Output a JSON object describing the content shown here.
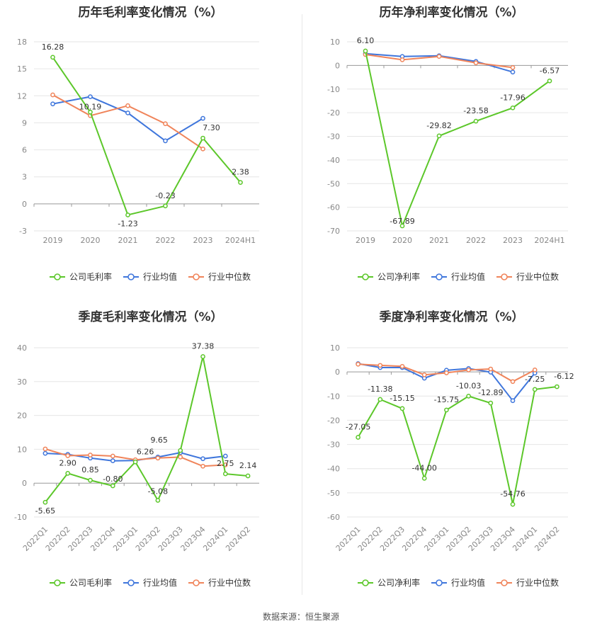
{
  "source": "数据来源：恒生聚源",
  "colors": {
    "company": "#5cc72a",
    "avg": "#3f76dc",
    "median": "#f0845a"
  },
  "chart_data": [
    {
      "type": "line",
      "title": "历年毛利率变化情况（%）",
      "categories": [
        "2019",
        "2020",
        "2021",
        "2022",
        "2023",
        "2024H1"
      ],
      "ylim": [
        -3,
        18
      ],
      "yticks": [
        18,
        15,
        12,
        9,
        6,
        3,
        0,
        -3
      ],
      "legend": [
        "公司毛利率",
        "行业均值",
        "行业中位数"
      ],
      "series": [
        {
          "name": "公司毛利率",
          "values": [
            16.28,
            10.19,
            -1.23,
            -0.23,
            7.3,
            2.38
          ],
          "labels": [
            "16.28",
            "10.19",
            "-1.23",
            "-0.23",
            "7.30",
            "2.38"
          ]
        },
        {
          "name": "行业均值",
          "values": [
            11.1,
            11.9,
            10.1,
            7.0,
            9.5,
            null
          ]
        },
        {
          "name": "行业中位数",
          "values": [
            12.1,
            9.8,
            10.9,
            8.9,
            6.1,
            null
          ]
        }
      ]
    },
    {
      "type": "line",
      "title": "历年净利率变化情况（%）",
      "categories": [
        "2019",
        "2020",
        "2021",
        "2022",
        "2023",
        "2024H1"
      ],
      "ylim": [
        -70,
        10
      ],
      "yticks": [
        10,
        0,
        -10,
        -20,
        -30,
        -40,
        -50,
        -60,
        -70
      ],
      "legend": [
        "公司净利率",
        "行业均值",
        "行业中位数"
      ],
      "series": [
        {
          "name": "公司净利率",
          "values": [
            6.1,
            -67.89,
            -29.82,
            -23.58,
            -17.96,
            -6.57
          ],
          "labels": [
            "6.10",
            "-67.89",
            "-29.82",
            "-23.58",
            "-17.96",
            "-6.57"
          ]
        },
        {
          "name": "行业均值",
          "values": [
            5.0,
            3.8,
            4.1,
            1.7,
            -2.8,
            null
          ]
        },
        {
          "name": "行业中位数",
          "values": [
            4.6,
            2.4,
            3.8,
            1.1,
            -0.9,
            null
          ]
        }
      ]
    },
    {
      "type": "line",
      "title": "季度毛利率变化情况（%）",
      "categories": [
        "2022Q1",
        "2022Q2",
        "2022Q3",
        "2022Q4",
        "2023Q1",
        "2023Q2",
        "2023Q3",
        "2023Q4",
        "2024Q1",
        "2024Q2"
      ],
      "ylim": [
        -10,
        40
      ],
      "yticks": [
        40,
        30,
        20,
        10,
        0,
        -10
      ],
      "legend": [
        "公司毛利率",
        "行业均值",
        "行业中位数"
      ],
      "series": [
        {
          "name": "公司毛利率",
          "values": [
            -5.65,
            2.9,
            0.85,
            -0.8,
            6.26,
            -5.08,
            9.65,
            37.38,
            2.75,
            2.14
          ],
          "labels": [
            "-5.65",
            "2.90",
            "0.85",
            "-0.80",
            "6.26",
            "-5.08",
            "9.65",
            "37.38",
            "2.75",
            "2.14"
          ]
        },
        {
          "name": "行业均值",
          "values": [
            8.8,
            8.5,
            7.4,
            6.6,
            6.7,
            7.7,
            9.0,
            7.2,
            8.0,
            null
          ]
        },
        {
          "name": "行业中位数",
          "values": [
            10.1,
            8.1,
            8.3,
            8.0,
            6.9,
            7.4,
            7.7,
            5.0,
            5.4,
            null
          ]
        }
      ]
    },
    {
      "type": "line",
      "title": "季度净利率变化情况（%）",
      "categories": [
        "2022Q1",
        "2022Q2",
        "2022Q3",
        "2022Q4",
        "2023Q1",
        "2023Q2",
        "2023Q3",
        "2023Q4",
        "2024Q1",
        "2024Q2"
      ],
      "ylim": [
        -60,
        10
      ],
      "yticks": [
        10,
        0,
        -10,
        -20,
        -30,
        -40,
        -50,
        -60
      ],
      "legend": [
        "公司净利率",
        "行业均值",
        "行业中位数"
      ],
      "series": [
        {
          "name": "公司净利率",
          "values": [
            -27.05,
            -11.38,
            -15.15,
            -44.0,
            -15.75,
            -10.03,
            -12.89,
            -54.76,
            -7.25,
            -6.12
          ],
          "labels": [
            "-27.05",
            "-11.38",
            "-15.15",
            "-44.00",
            "-15.75",
            "-10.03",
            "-12.89",
            "-54.76",
            "-7.25",
            "-6.12"
          ]
        },
        {
          "name": "行业均值",
          "values": [
            3.4,
            1.8,
            1.8,
            -2.6,
            0.7,
            1.4,
            -0.1,
            -11.9,
            -0.5,
            null
          ]
        },
        {
          "name": "行业中位数",
          "values": [
            3.2,
            2.7,
            2.3,
            -1.2,
            -0.4,
            0.8,
            1.2,
            -4.0,
            0.8,
            null
          ]
        }
      ]
    }
  ]
}
